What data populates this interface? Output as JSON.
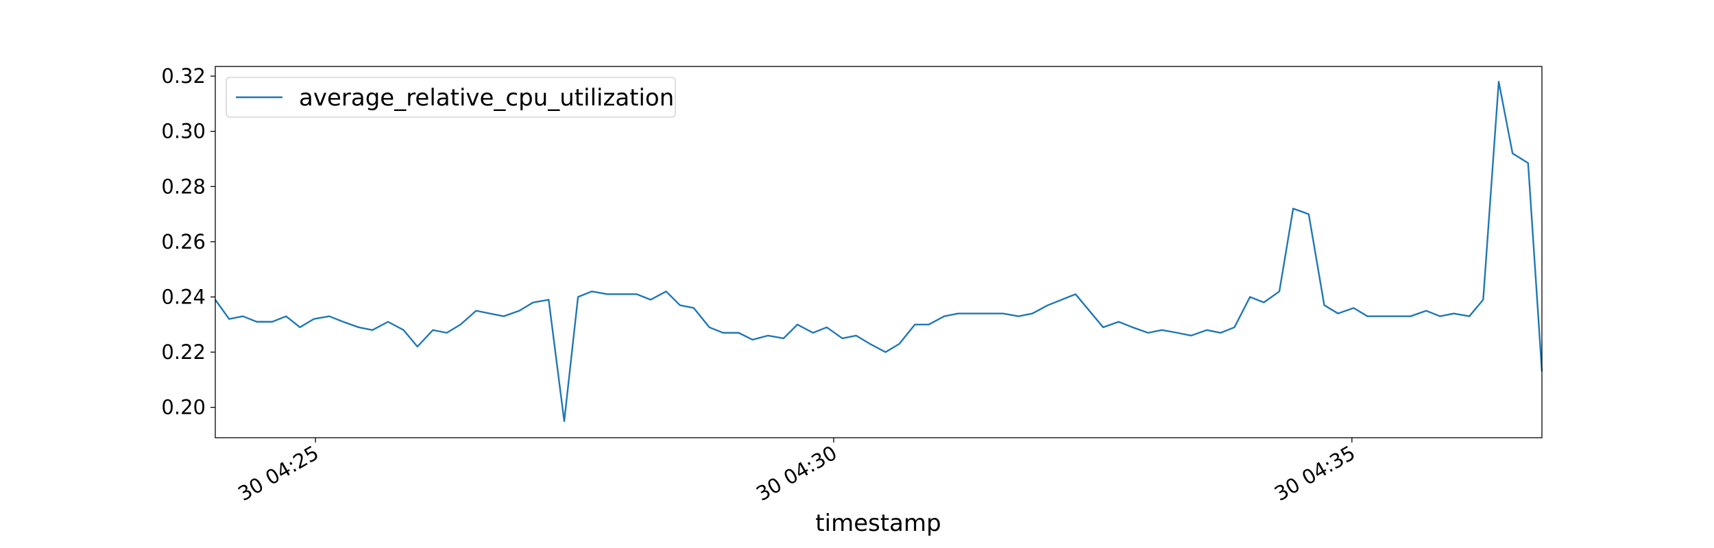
{
  "chart_data": {
    "type": "line",
    "xlabel": "timestamp",
    "x": [
      "30 04:24:02",
      "30 04:24:10",
      "30 04:24:18",
      "30 04:24:26",
      "30 04:24:35",
      "30 04:24:43",
      "30 04:24:51",
      "30 04:24:59",
      "30 04:25:08",
      "30 04:25:16",
      "30 04:25:25",
      "30 04:25:33",
      "30 04:25:42",
      "30 04:25:51",
      "30 04:25:59",
      "30 04:26:08",
      "30 04:26:16",
      "30 04:26:24",
      "30 04:26:33",
      "30 04:26:41",
      "30 04:26:49",
      "30 04:26:58",
      "30 04:27:06",
      "30 04:27:15",
      "30 04:27:24",
      "30 04:27:32",
      "30 04:27:40",
      "30 04:27:49",
      "30 04:27:57",
      "30 04:28:06",
      "30 04:28:14",
      "30 04:28:23",
      "30 04:28:31",
      "30 04:28:39",
      "30 04:28:48",
      "30 04:28:56",
      "30 04:29:05",
      "30 04:29:13",
      "30 04:29:22",
      "30 04:29:31",
      "30 04:29:39",
      "30 04:29:48",
      "30 04:29:56",
      "30 04:30:05",
      "30 04:30:13",
      "30 04:30:21",
      "30 04:30:30",
      "30 04:30:38",
      "30 04:30:47",
      "30 04:30:55",
      "30 04:31:04",
      "30 04:31:12",
      "30 04:31:21",
      "30 04:31:29",
      "30 04:31:38",
      "30 04:31:47",
      "30 04:31:55",
      "30 04:32:04",
      "30 04:32:12",
      "30 04:32:20",
      "30 04:32:36",
      "30 04:32:45",
      "30 04:32:53",
      "30 04:33:02",
      "30 04:33:10",
      "30 04:33:19",
      "30 04:33:27",
      "30 04:33:36",
      "30 04:33:44",
      "30 04:33:52",
      "30 04:34:01",
      "30 04:34:09",
      "30 04:34:18",
      "30 04:34:26",
      "30 04:34:35",
      "30 04:34:44",
      "30 04:34:52",
      "30 04:35:01",
      "30 04:35:09",
      "30 04:35:17",
      "30 04:35:26",
      "30 04:35:34",
      "30 04:35:43",
      "30 04:35:51",
      "30 04:35:59",
      "30 04:36:08",
      "30 04:36:16",
      "30 04:36:25",
      "30 04:36:33",
      "30 04:36:42",
      "30 04:36:50"
    ],
    "series": [
      {
        "name": "average_relative_cpu_utilization",
        "color": "#1f77b4",
        "values": [
          0.239,
          0.232,
          0.233,
          0.231,
          0.231,
          0.233,
          0.229,
          0.232,
          0.233,
          0.231,
          0.229,
          0.228,
          0.231,
          0.228,
          0.222,
          0.228,
          0.227,
          0.23,
          0.235,
          0.234,
          0.233,
          0.235,
          0.238,
          0.239,
          0.195,
          0.24,
          0.242,
          0.241,
          0.241,
          0.241,
          0.239,
          0.242,
          0.237,
          0.236,
          0.229,
          0.227,
          0.227,
          0.2245,
          0.226,
          0.225,
          0.23,
          0.227,
          0.229,
          0.225,
          0.226,
          0.223,
          0.22,
          0.223,
          0.23,
          0.23,
          0.233,
          0.234,
          0.234,
          0.234,
          0.234,
          0.233,
          0.234,
          0.237,
          0.239,
          0.241,
          0.229,
          0.231,
          0.229,
          0.227,
          0.228,
          0.227,
          0.226,
          0.228,
          0.227,
          0.229,
          0.24,
          0.238,
          0.242,
          0.272,
          0.27,
          0.237,
          0.234,
          0.236,
          0.233,
          0.233,
          0.233,
          0.233,
          0.235,
          0.233,
          0.234,
          0.233,
          0.239,
          0.318,
          0.292,
          0.2885,
          0.213
        ]
      }
    ],
    "xlim": [
      "30 04:24:02",
      "30 04:36:50"
    ],
    "xticks": [
      {
        "value": "30 04:25:00",
        "label": "30 04:25"
      },
      {
        "value": "30 04:30:00",
        "label": "30 04:30"
      },
      {
        "value": "30 04:35:00",
        "label": "30 04:35"
      }
    ],
    "ylim": [
      0.189,
      0.3235
    ],
    "yticks": [
      {
        "value": 0.2,
        "label": "0.20"
      },
      0.22,
      0.24,
      0.26,
      0.28,
      {
        "value": 0.3,
        "label": "0.30"
      },
      0.32
    ],
    "legend": "upper left"
  }
}
